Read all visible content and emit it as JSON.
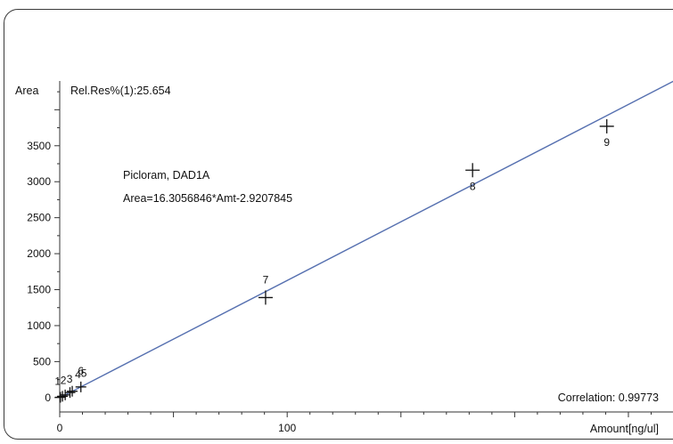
{
  "chart_data": {
    "type": "scatter",
    "ylabel": "Area",
    "xlabel": "Amount[ng/ul]",
    "xlim": [
      0,
      270
    ],
    "ylim": [
      -200,
      4400
    ],
    "xticks": [
      0,
      100
    ],
    "yticks": [
      0,
      500,
      1000,
      1500,
      2000,
      2500,
      3000,
      3500
    ],
    "rel_res": "Rel.Res%(1):25.654",
    "compound": "Picloram, DAD1A",
    "equation": "Area=16.3056846*Amt-2.9207845",
    "correlation": "Correlation: 0.99773",
    "fit": {
      "slope": 16.3056846,
      "intercept": -2.9207845,
      "color": "#5670b0"
    },
    "points": [
      {
        "label": "1",
        "x": 0.3,
        "y": 4
      },
      {
        "label": "2",
        "x": 1.2,
        "y": 18
      },
      {
        "label": "3",
        "x": 2.4,
        "y": 37
      },
      {
        "label": "4",
        "x": 4.5,
        "y": 70
      },
      {
        "label": "5",
        "x": 5.5,
        "y": 88
      },
      {
        "label": "6",
        "x": 9.3,
        "y": 148
      },
      {
        "label": "7",
        "x": 90.5,
        "y": 1390
      },
      {
        "label": "8",
        "x": 181.5,
        "y": 3160
      },
      {
        "label": "9",
        "x": 240.5,
        "y": 3770
      }
    ]
  }
}
